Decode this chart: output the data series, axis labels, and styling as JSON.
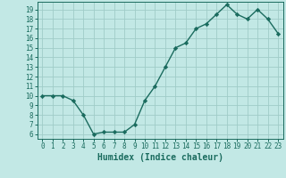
{
  "x": [
    0,
    1,
    2,
    3,
    4,
    5,
    6,
    7,
    8,
    9,
    10,
    11,
    12,
    13,
    14,
    15,
    16,
    17,
    18,
    19,
    20,
    21,
    22,
    23
  ],
  "y": [
    10,
    10,
    10,
    9.5,
    8,
    6,
    6.2,
    6.2,
    6.2,
    7,
    9.5,
    11,
    13,
    15,
    15.5,
    17,
    17.5,
    18.5,
    19.5,
    18.5,
    18,
    19,
    18,
    16.5
  ],
  "line_color": "#1a6b5e",
  "marker": "D",
  "marker_size": 2.2,
  "bg_color": "#c2e8e5",
  "grid_color": "#a0ccc8",
  "xlabel": "Humidex (Indice chaleur)",
  "xlim": [
    -0.5,
    23.5
  ],
  "ylim": [
    5.5,
    19.8
  ],
  "yticks": [
    6,
    7,
    8,
    9,
    10,
    11,
    12,
    13,
    14,
    15,
    16,
    17,
    18,
    19
  ],
  "xticks": [
    0,
    1,
    2,
    3,
    4,
    5,
    6,
    7,
    8,
    9,
    10,
    11,
    12,
    13,
    14,
    15,
    16,
    17,
    18,
    19,
    20,
    21,
    22,
    23
  ],
  "tick_color": "#1a6b5e",
  "font_size": 5.5,
  "label_font_size": 7.0,
  "line_width": 1.0
}
